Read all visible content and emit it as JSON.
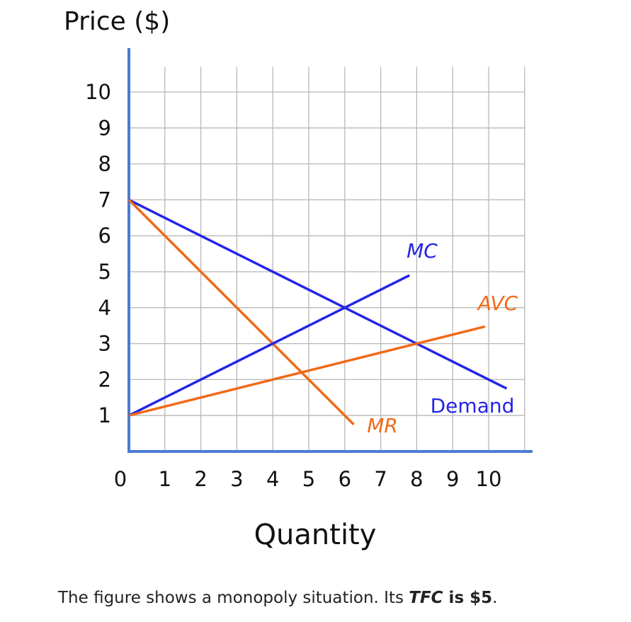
{
  "chart_data": {
    "type": "line",
    "y_label": "Price ($)",
    "x_label": "Quantity",
    "xlim": [
      0,
      11
    ],
    "ylim": [
      0,
      10.7
    ],
    "xticks": [
      0,
      1,
      2,
      3,
      4,
      5,
      6,
      7,
      8,
      9,
      10
    ],
    "yticks": [
      1,
      2,
      3,
      4,
      5,
      6,
      7,
      8,
      9,
      10
    ],
    "grid": true,
    "series": [
      {
        "name": "Demand",
        "color": "#2424e6",
        "x": [
          0,
          10.5
        ],
        "values": [
          7,
          1.75
        ]
      },
      {
        "name": "MR",
        "color": "#f06a18",
        "x": [
          0,
          6.25
        ],
        "values": [
          7,
          0.75
        ]
      },
      {
        "name": "MC",
        "color": "#2424e6",
        "x": [
          0,
          7.8
        ],
        "values": [
          1,
          4.9
        ]
      },
      {
        "name": "AVC",
        "color": "#f06a18",
        "x": [
          0,
          9.9
        ],
        "values": [
          1,
          3.475
        ]
      }
    ]
  },
  "caption": {
    "text": "The figure shows a monopoly situation. Its ",
    "emphasis": "TFC",
    "bold": " is $5",
    "end": "."
  }
}
